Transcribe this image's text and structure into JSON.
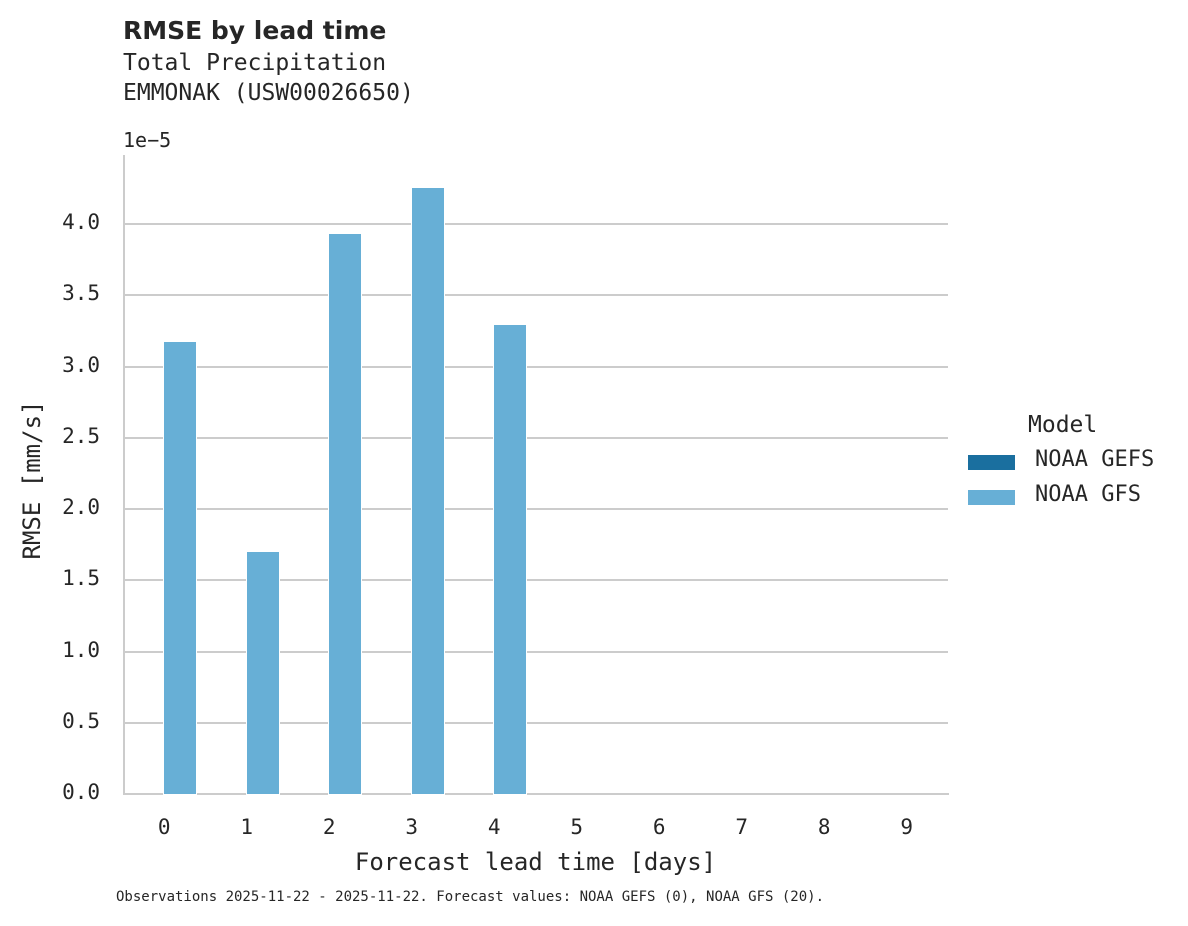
{
  "chart_data": {
    "type": "bar",
    "title": "RMSE by lead time",
    "subtitle": [
      "Total Precipitation",
      "EMMONAK (USW00026650)"
    ],
    "xlabel": "Forecast lead time [days]",
    "ylabel": "RMSE [mm/s]",
    "y_offset_label": "1e−5",
    "categories": [
      "0",
      "1",
      "2",
      "3",
      "4",
      "5",
      "6",
      "7",
      "8",
      "9"
    ],
    "series": [
      {
        "name": "NOAA GEFS",
        "color": "#1a6f9f",
        "values": [
          null,
          null,
          null,
          null,
          null,
          null,
          null,
          null,
          null,
          null
        ]
      },
      {
        "name": "NOAA GFS",
        "color": "#67afd6",
        "values": [
          3.17,
          1.7,
          3.93,
          4.25,
          3.29,
          null,
          null,
          null,
          null,
          null
        ]
      }
    ],
    "value_scale": 1e-05,
    "ylim": [
      0,
      4.45
    ],
    "yticks": [
      "0.0",
      "0.5",
      "1.0",
      "1.5",
      "2.0",
      "2.5",
      "3.0",
      "3.5",
      "4.0"
    ],
    "grid": "horizontal",
    "legend": {
      "title": "Model",
      "position": "right"
    },
    "footnote": "Observations 2025-11-22 - 2025-11-22. Forecast values: NOAA GEFS (0), NOAA GFS (20)."
  }
}
